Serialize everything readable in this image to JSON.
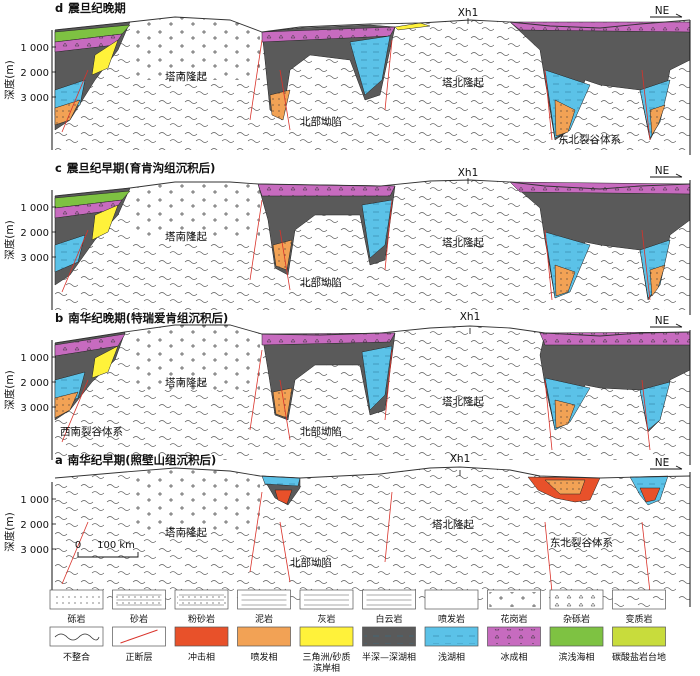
{
  "panels": [
    {
      "id": "d",
      "title": "震旦纪晚期",
      "well": "Xh1",
      "direction": "NE",
      "axis_title": "深度(m)",
      "ticks": [
        "1 000",
        "2 000",
        "3 000"
      ],
      "regions": [
        {
          "key": "tnl",
          "text": "塔南隆起"
        },
        {
          "key": "bbax",
          "text": "北部坳陷"
        },
        {
          "key": "tbl",
          "text": "塔北隆起"
        },
        {
          "key": "rift_ne",
          "text": "东北裂谷体系"
        }
      ]
    },
    {
      "id": "c",
      "title": "震旦纪早期(育肯沟组沉积后)",
      "well": "Xh1",
      "direction": "NE",
      "axis_title": "深度(m)",
      "ticks": [
        "1 000",
        "2 000",
        "3 000"
      ],
      "regions": [
        {
          "key": "tnl",
          "text": "塔南隆起"
        },
        {
          "key": "bbax",
          "text": "北部坳陷"
        },
        {
          "key": "tbl",
          "text": "塔北隆起"
        }
      ]
    },
    {
      "id": "b",
      "title": "南华纪晚期(特瑞爱肯组沉积后)",
      "well": "Xh1",
      "direction": "NE",
      "axis_title": "深度(m)",
      "ticks": [
        "1 000",
        "2 000",
        "3 000"
      ],
      "regions": [
        {
          "key": "tnl",
          "text": "塔南隆起"
        },
        {
          "key": "bbax",
          "text": "北部坳陷"
        },
        {
          "key": "tbl",
          "text": "塔北隆起"
        },
        {
          "key": "rift_sw",
          "text": "西南裂谷体系"
        }
      ]
    },
    {
      "id": "a",
      "title": "南华纪早期(照壁山组沉积后)",
      "well": "Xh1",
      "direction": "NE",
      "axis_title": "深度(m)",
      "ticks": [
        "1 000",
        "2 000",
        "3 000"
      ],
      "regions": [
        {
          "key": "tnl",
          "text": "塔南隆起"
        },
        {
          "key": "bbax",
          "text": "北部坳陷"
        },
        {
          "key": "tbl",
          "text": "塔北隆起"
        },
        {
          "key": "rift_ne",
          "text": "东北裂谷体系"
        }
      ]
    }
  ],
  "scale_bar": {
    "zero": "0",
    "label": "100 km"
  },
  "legend": {
    "lithology": [
      {
        "key": "conglomerate",
        "label": "砾岩"
      },
      {
        "key": "sandstone",
        "label": "砂岩"
      },
      {
        "key": "siltstone",
        "label": "粉砂岩"
      },
      {
        "key": "mudstone",
        "label": "泥岩"
      },
      {
        "key": "limestone",
        "label": "灰岩"
      },
      {
        "key": "dolomite",
        "label": "白云岩"
      },
      {
        "key": "volcanic",
        "label": "喷发岩"
      },
      {
        "key": "granite",
        "label": "花岗岩"
      },
      {
        "key": "diamictite",
        "label": "杂砾岩"
      },
      {
        "key": "metamorphic",
        "label": "变质岩"
      }
    ],
    "facies": [
      {
        "key": "unconformity",
        "label": "不整合",
        "color": "#ffffff"
      },
      {
        "key": "normal_fault",
        "label": "正断层",
        "color": "#ffffff"
      },
      {
        "key": "alluvial",
        "label": "冲击相",
        "color": "#e8512a"
      },
      {
        "key": "eruptive",
        "label": "喷发相",
        "color": "#f2a255"
      },
      {
        "key": "delta",
        "label": "三角洲/砂质",
        "label2": "滨岸相",
        "color": "#fff23a"
      },
      {
        "key": "deep_lake",
        "label": "半深—深湖相",
        "color": "#5a5a5a"
      },
      {
        "key": "shallow_lake",
        "label": "浅湖相",
        "color": "#5bc2e8"
      },
      {
        "key": "glacial",
        "label": "冰成相",
        "color": "#c76bbf"
      },
      {
        "key": "neritic",
        "label": "滨浅海相",
        "color": "#7ec242"
      },
      {
        "key": "carbonate",
        "label": "碳酸盐岩台地",
        "color": "#c8dc3c"
      }
    ]
  },
  "colors": {
    "alluvial": "#e8512a",
    "eruptive": "#f2a255",
    "delta": "#fff23a",
    "deep_lake": "#5a5a5a",
    "shallow_lake": "#5bc2e8",
    "glacial": "#c76bbf",
    "neritic": "#7ec242",
    "carbonate": "#c8dc3c"
  }
}
